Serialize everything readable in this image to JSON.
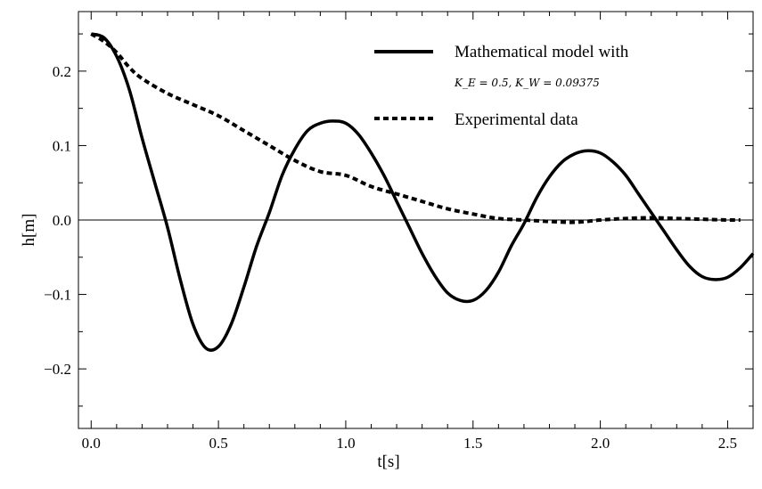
{
  "chart_data": {
    "type": "line",
    "xlabel": "t[s]",
    "ylabel": "h[m]",
    "xlim": [
      -0.05,
      2.6
    ],
    "ylim": [
      -0.28,
      0.28
    ],
    "x_ticks": [
      0.0,
      0.5,
      1.0,
      1.5,
      2.0,
      2.5
    ],
    "x_tick_labels": [
      "0.0",
      "0.5",
      "1.0",
      "1.5",
      "2.0",
      "2.5"
    ],
    "y_ticks": [
      -0.2,
      -0.1,
      0.0,
      0.1,
      0.2
    ],
    "y_tick_labels": [
      "−0.2",
      "−0.1",
      "0.0",
      "0.1",
      "0.2"
    ],
    "zero_line": true,
    "legend_position": "top-right",
    "series": [
      {
        "name": "Mathematical model with",
        "subtitle": "K_E = 0.5, K_W = 0.09375",
        "style": "solid",
        "color": "#000000",
        "x": [
          0.0,
          0.05,
          0.1,
          0.15,
          0.2,
          0.25,
          0.3,
          0.35,
          0.4,
          0.45,
          0.5,
          0.55,
          0.6,
          0.65,
          0.7,
          0.75,
          0.8,
          0.85,
          0.9,
          0.95,
          1.0,
          1.05,
          1.1,
          1.15,
          1.2,
          1.25,
          1.3,
          1.35,
          1.4,
          1.45,
          1.5,
          1.55,
          1.6,
          1.65,
          1.7,
          1.75,
          1.8,
          1.85,
          1.9,
          1.95,
          2.0,
          2.05,
          2.1,
          2.15,
          2.2,
          2.25,
          2.3,
          2.35,
          2.4,
          2.45,
          2.5,
          2.55,
          2.6
        ],
        "y": [
          0.25,
          0.245,
          0.22,
          0.175,
          0.11,
          0.05,
          -0.01,
          -0.08,
          -0.14,
          -0.172,
          -0.17,
          -0.14,
          -0.09,
          -0.035,
          0.01,
          0.06,
          0.095,
          0.12,
          0.13,
          0.133,
          0.13,
          0.115,
          0.09,
          0.06,
          0.025,
          -0.01,
          -0.045,
          -0.075,
          -0.098,
          -0.108,
          -0.108,
          -0.095,
          -0.07,
          -0.035,
          -0.005,
          0.03,
          0.058,
          0.078,
          0.089,
          0.093,
          0.09,
          0.078,
          0.06,
          0.035,
          0.01,
          -0.015,
          -0.04,
          -0.062,
          -0.076,
          -0.08,
          -0.077,
          -0.064,
          -0.045
        ]
      },
      {
        "name": "Experimental data",
        "style": "dashed",
        "color": "#000000",
        "x": [
          0.0,
          0.05,
          0.1,
          0.15,
          0.2,
          0.3,
          0.4,
          0.5,
          0.6,
          0.7,
          0.8,
          0.9,
          1.0,
          1.1,
          1.2,
          1.3,
          1.4,
          1.5,
          1.6,
          1.7,
          1.8,
          1.9,
          2.0,
          2.1,
          2.2,
          2.3,
          2.4,
          2.5,
          2.55
        ],
        "y": [
          0.25,
          0.24,
          0.225,
          0.205,
          0.19,
          0.17,
          0.155,
          0.14,
          0.12,
          0.1,
          0.08,
          0.065,
          0.06,
          0.045,
          0.035,
          0.025,
          0.015,
          0.008,
          0.002,
          0.0,
          -0.002,
          -0.003,
          0.0,
          0.002,
          0.003,
          0.002,
          0.001,
          0.0,
          0.0
        ]
      }
    ]
  }
}
